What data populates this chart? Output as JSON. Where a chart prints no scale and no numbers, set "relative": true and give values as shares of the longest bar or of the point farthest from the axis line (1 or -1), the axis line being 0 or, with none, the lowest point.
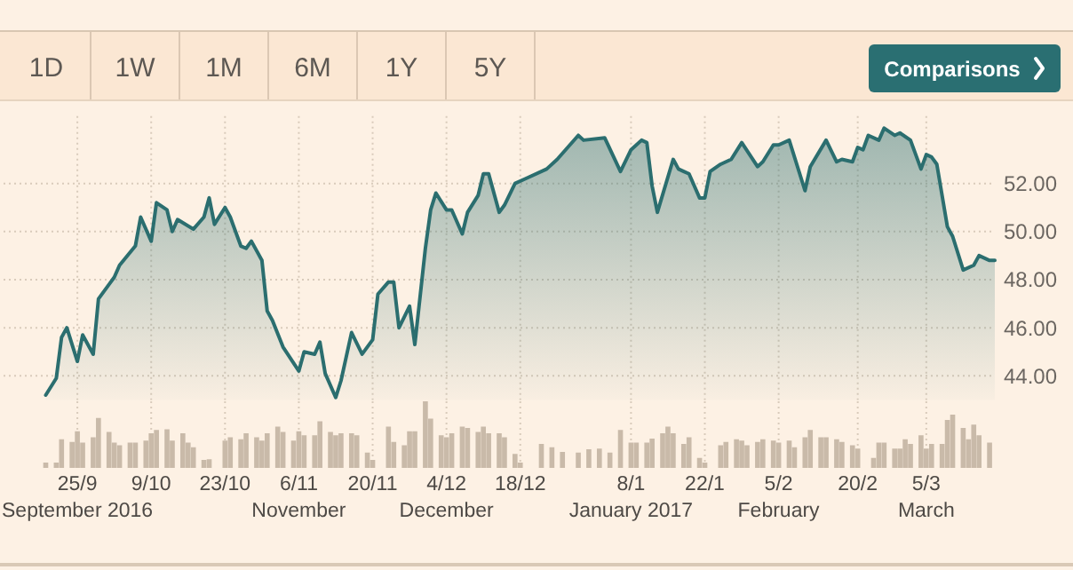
{
  "chart_data": [
    {
      "type": "area",
      "color": "#2b6e6f",
      "annotations": [
        "1D",
        "1W",
        "1M",
        "6M",
        "1Y",
        "5Y",
        "Comparisons"
      ],
      "x": [
        "2016-09-19",
        "2016-09-21",
        "2016-09-22",
        "2016-09-23",
        "2016-09-25",
        "2016-09-26",
        "2016-09-28",
        "2016-09-29",
        "2016-10-01",
        "2016-10-02",
        "2016-10-03",
        "2016-10-06",
        "2016-10-07",
        "2016-10-09",
        "2016-10-10",
        "2016-10-12",
        "2016-10-13",
        "2016-10-14",
        "2016-10-17",
        "2016-10-19",
        "2016-10-20",
        "2016-10-21",
        "2016-10-23",
        "2016-10-24",
        "2016-10-26",
        "2016-10-27",
        "2016-10-28",
        "2016-10-30",
        "2016-10-31",
        "2016-11-01",
        "2016-11-03",
        "2016-11-06",
        "2016-11-07",
        "2016-11-09",
        "2016-11-10",
        "2016-11-11",
        "2016-11-13",
        "2016-11-14",
        "2016-11-16",
        "2016-11-18",
        "2016-11-20",
        "2016-11-21",
        "2016-11-23",
        "2016-11-24",
        "2016-11-25",
        "2016-11-27",
        "2016-11-28",
        "2016-11-30",
        "2016-12-01",
        "2016-12-02",
        "2016-12-04",
        "2016-12-05",
        "2016-12-07",
        "2016-12-08",
        "2016-12-10",
        "2016-12-11",
        "2016-12-12",
        "2016-12-14",
        "2016-12-15",
        "2016-12-17",
        "2016-12-19",
        "2016-12-23",
        "2016-12-25",
        "2016-12-29",
        "2016-12-30",
        "2017-01-03",
        "2017-01-06",
        "2017-01-08",
        "2017-01-10",
        "2017-01-11",
        "2017-01-12",
        "2017-01-13",
        "2017-01-16",
        "2017-01-17",
        "2017-01-18",
        "2017-01-19",
        "2017-01-21",
        "2017-01-22",
        "2017-01-23",
        "2017-01-25",
        "2017-01-27",
        "2017-01-29",
        "2017-02-01",
        "2017-02-02",
        "2017-02-04",
        "2017-02-05",
        "2017-02-07",
        "2017-02-10",
        "2017-02-11",
        "2017-02-14",
        "2017-02-16",
        "2017-02-17",
        "2017-02-19",
        "2017-02-20",
        "2017-02-21",
        "2017-02-22",
        "2017-02-24",
        "2017-02-25",
        "2017-02-27",
        "2017-02-28",
        "2017-03-02",
        "2017-03-04",
        "2017-03-05",
        "2017-03-06",
        "2017-03-07",
        "2017-03-09",
        "2017-03-10",
        "2017-03-12",
        "2017-03-14",
        "2017-03-15",
        "2017-03-17",
        "2017-03-18"
      ],
      "values": [
        43.2,
        43.9,
        45.6,
        46.0,
        44.6,
        45.7,
        44.9,
        47.2,
        47.8,
        48.1,
        48.6,
        49.4,
        50.6,
        49.6,
        51.2,
        50.9,
        50.0,
        50.5,
        50.1,
        50.6,
        51.4,
        50.3,
        51.0,
        50.6,
        49.4,
        49.3,
        49.6,
        48.8,
        46.7,
        46.3,
        45.2,
        44.2,
        45.0,
        44.9,
        45.4,
        44.1,
        43.1,
        43.8,
        45.8,
        44.9,
        45.5,
        47.4,
        47.9,
        47.9,
        46.0,
        46.9,
        45.3,
        49.3,
        50.9,
        51.6,
        50.9,
        50.9,
        49.9,
        50.8,
        51.5,
        52.4,
        52.4,
        50.8,
        51.1,
        52.0,
        52.2,
        52.6,
        53.0,
        54.0,
        53.8,
        53.9,
        52.5,
        53.4,
        53.8,
        53.7,
        51.9,
        50.8,
        53.0,
        52.6,
        52.5,
        52.4,
        51.4,
        51.4,
        52.5,
        52.8,
        53.0,
        53.7,
        52.7,
        52.9,
        53.6,
        53.6,
        53.8,
        51.7,
        52.7,
        53.8,
        52.9,
        53.0,
        52.9,
        53.5,
        53.4,
        54.0,
        53.8,
        54.3,
        54.0,
        54.1,
        53.8,
        52.6,
        53.2,
        53.1,
        52.8,
        50.2,
        49.8,
        48.4,
        48.6,
        49.0,
        48.8,
        48.8
      ],
      "xlim": [
        "2016-09-11",
        "2017-03-18"
      ],
      "ylim": [
        43,
        54.8
      ],
      "xticks": [
        {
          "value": "2016-09-25",
          "label": null
        },
        {
          "value": "2016-10-09",
          "label": null
        },
        {
          "value": "2016-10-23",
          "label": null
        },
        {
          "value": "2016-11-06",
          "label": null
        },
        {
          "value": "2016-11-20",
          "label": null
        },
        {
          "value": "2016-12-04",
          "label": null
        },
        {
          "value": "2016-12-18",
          "label": null
        },
        {
          "value": "2017-01-08",
          "label": null
        },
        {
          "value": "2017-01-22",
          "label": null
        },
        {
          "value": "2017-02-05",
          "label": null
        },
        {
          "value": "2017-02-20",
          "label": null
        },
        {
          "value": "2017-03-05",
          "label": null
        }
      ],
      "yticks": [
        {
          "value": 44,
          "label": "44.00"
        },
        {
          "value": 46,
          "label": "46.00"
        },
        {
          "value": 48,
          "label": "48.00"
        },
        {
          "value": 50,
          "label": "50.00"
        },
        {
          "value": 52,
          "label": "52.00"
        }
      ],
      "grid": true,
      "tick_labels": "y"
    },
    {
      "type": "bar",
      "relative": true,
      "color": "#c9baa9",
      "x": [
        "2016-09-19",
        "2016-09-21",
        "2016-09-22",
        "2016-09-24",
        "2016-09-25",
        "2016-09-26",
        "2016-09-28",
        "2016-09-29",
        "2016-10-01",
        "2016-10-02",
        "2016-10-03",
        "2016-10-05",
        "2016-10-06",
        "2016-10-08",
        "2016-10-09",
        "2016-10-10",
        "2016-10-12",
        "2016-10-13",
        "2016-10-15",
        "2016-10-16",
        "2016-10-17",
        "2016-10-19",
        "2016-10-20",
        "2016-10-23",
        "2016-10-24",
        "2016-10-26",
        "2016-10-27",
        "2016-10-29",
        "2016-10-30",
        "2016-10-31",
        "2016-11-02",
        "2016-11-03",
        "2016-11-05",
        "2016-11-06",
        "2016-11-07",
        "2016-11-09",
        "2016-11-10",
        "2016-11-12",
        "2016-11-13",
        "2016-11-14",
        "2016-11-16",
        "2016-11-17",
        "2016-11-19",
        "2016-11-20",
        "2016-11-23",
        "2016-11-24",
        "2016-11-26",
        "2016-11-27",
        "2016-11-28",
        "2016-11-30",
        "2016-12-01",
        "2016-12-03",
        "2016-12-04",
        "2016-12-05",
        "2016-12-07",
        "2016-12-08",
        "2016-12-10",
        "2016-12-11",
        "2016-12-12",
        "2016-12-14",
        "2016-12-15",
        "2016-12-17",
        "2016-12-18",
        "2016-12-22",
        "2016-12-24",
        "2016-12-26",
        "2016-12-29",
        "2016-12-31",
        "2017-01-02",
        "2017-01-04",
        "2017-01-06",
        "2017-01-08",
        "2017-01-09",
        "2017-01-11",
        "2017-01-12",
        "2017-01-14",
        "2017-01-15",
        "2017-01-16",
        "2017-01-18",
        "2017-01-19",
        "2017-01-21",
        "2017-01-22",
        "2017-01-25",
        "2017-01-26",
        "2017-01-28",
        "2017-01-29",
        "2017-01-30",
        "2017-02-01",
        "2017-02-02",
        "2017-02-04",
        "2017-02-05",
        "2017-02-07",
        "2017-02-08",
        "2017-02-10",
        "2017-02-11",
        "2017-02-13",
        "2017-02-14",
        "2017-02-16",
        "2017-02-17",
        "2017-02-19",
        "2017-02-20",
        "2017-02-23",
        "2017-02-24",
        "2017-02-25",
        "2017-02-27",
        "2017-02-28",
        "2017-03-01",
        "2017-03-02",
        "2017-03-04",
        "2017-03-05",
        "2017-03-06",
        "2017-03-08",
        "2017-03-09",
        "2017-03-10",
        "2017-03-12",
        "2017-03-13",
        "2017-03-14",
        "2017-03-15",
        "2017-03-17"
      ],
      "values": [
        0.08,
        0.08,
        0.43,
        0.39,
        0.55,
        0.38,
        0.46,
        0.75,
        0.54,
        0.38,
        0.34,
        0.38,
        0.38,
        0.41,
        0.52,
        0.57,
        0.58,
        0.41,
        0.52,
        0.38,
        0.31,
        0.12,
        0.13,
        0.41,
        0.46,
        0.43,
        0.52,
        0.46,
        0.41,
        0.52,
        0.62,
        0.54,
        0.41,
        0.55,
        0.49,
        0.49,
        0.7,
        0.54,
        0.49,
        0.52,
        0.52,
        0.49,
        0.23,
        0.12,
        0.62,
        0.39,
        0.34,
        0.55,
        0.55,
        1,
        0.74,
        0.49,
        0.46,
        0.52,
        0.62,
        0.6,
        0.54,
        0.62,
        0.52,
        0.52,
        0.46,
        0.21,
        0.08,
        0.36,
        0.31,
        0.24,
        0.23,
        0.28,
        0.29,
        0.23,
        0.57,
        0.38,
        0.38,
        0.38,
        0.44,
        0.52,
        0.62,
        0.52,
        0.36,
        0.46,
        0.15,
        0.08,
        0.34,
        0.39,
        0.43,
        0.41,
        0.34,
        0.39,
        0.43,
        0.41,
        0.38,
        0.41,
        0.31,
        0.46,
        0.57,
        0.46,
        0.46,
        0.43,
        0.39,
        0.34,
        0.29,
        0.15,
        0.38,
        0.38,
        0.29,
        0.29,
        0.43,
        0.36,
        0.49,
        0.29,
        0.36,
        0.36,
        0.72,
        0.8,
        0.6,
        0.43,
        0.65,
        0.49,
        0.38
      ],
      "xlim": [
        "2016-09-11",
        "2017-03-18"
      ],
      "xticks": [
        {
          "value": "2016-09-25",
          "label": "25/9\nSeptember 2016"
        },
        {
          "value": "2016-10-09",
          "label": "9/10"
        },
        {
          "value": "2016-10-23",
          "label": "23/10"
        },
        {
          "value": "2016-11-06",
          "label": "6/11\nNovember"
        },
        {
          "value": "2016-11-20",
          "label": "20/11"
        },
        {
          "value": "2016-12-04",
          "label": "4/12\nDecember"
        },
        {
          "value": "2016-12-18",
          "label": "18/12"
        },
        {
          "value": "2017-01-08",
          "label": "8/1\nJanuary 2017"
        },
        {
          "value": "2017-01-22",
          "label": "22/1"
        },
        {
          "value": "2017-02-05",
          "label": "5/2\nFebruary"
        },
        {
          "value": "2017-02-20",
          "label": "20/2"
        },
        {
          "value": "2017-03-05",
          "label": "5/3\nMarch"
        }
      ],
      "grid": "x",
      "tick_labels": "x"
    }
  ]
}
